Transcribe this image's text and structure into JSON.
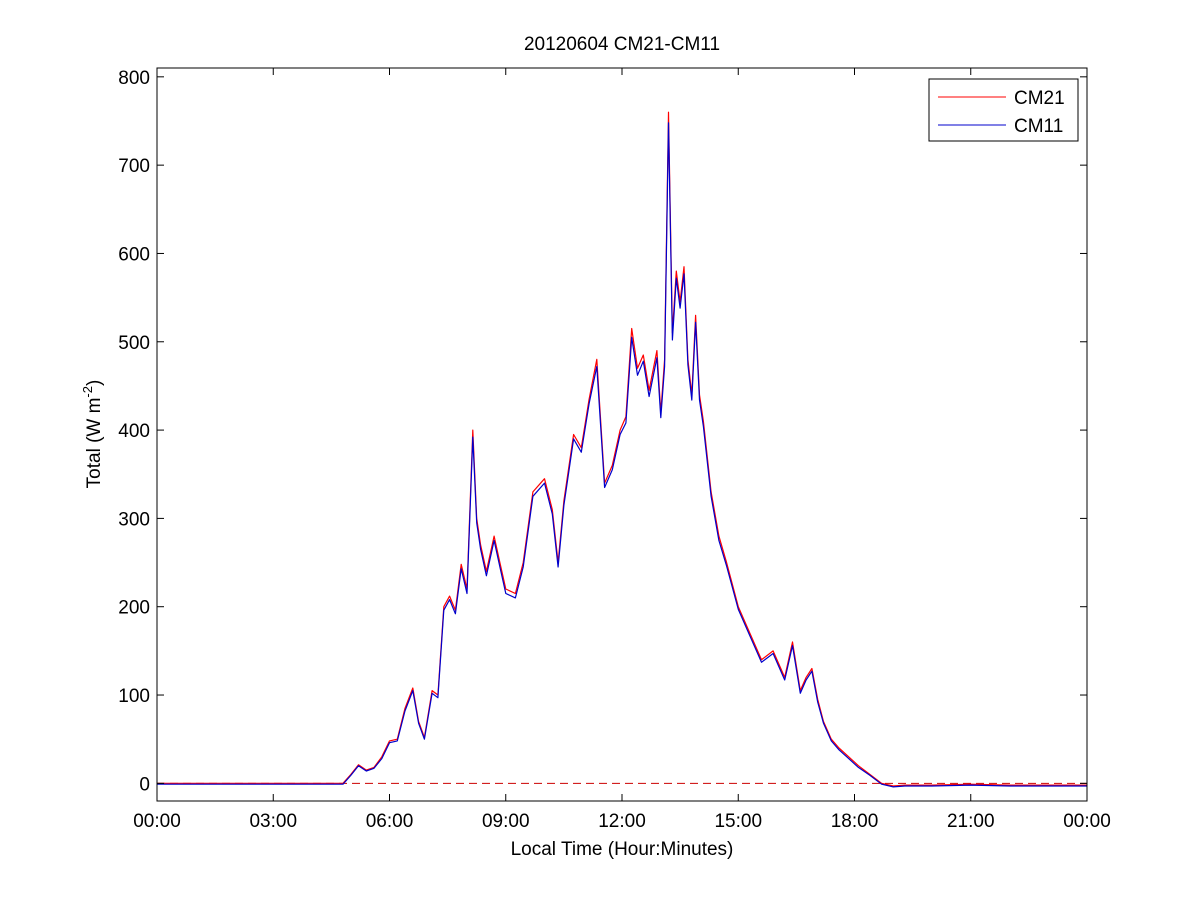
{
  "chart_data": {
    "type": "line",
    "title": "20120604 CM21-CM11",
    "xlabel": "Local Time (Hour:Minutes)",
    "ylabel": "Total (W m",
    "ylabel_sup": "-2",
    "ylabel_end": ")",
    "xlim": [
      0,
      24
    ],
    "ylim": [
      -20,
      810
    ],
    "x_ticks": [
      0,
      3,
      6,
      9,
      12,
      15,
      18,
      21,
      24
    ],
    "x_tick_labels": [
      "00:00",
      "03:00",
      "06:00",
      "09:00",
      "12:00",
      "15:00",
      "18:00",
      "21:00",
      "00:00"
    ],
    "y_ticks": [
      0,
      100,
      200,
      300,
      400,
      500,
      600,
      700,
      800
    ],
    "y_tick_labels": [
      "0",
      "100",
      "200",
      "300",
      "400",
      "500",
      "600",
      "700",
      "800"
    ],
    "grid": false,
    "legend_position": "top-right",
    "reference_line": {
      "y": 0,
      "style": "dashed",
      "color": "#cc0000"
    },
    "series": [
      {
        "name": "CM21",
        "color": "#ff0000",
        "x": [
          0,
          4.8,
          5.0,
          5.2,
          5.4,
          5.6,
          5.8,
          6.0,
          6.2,
          6.4,
          6.6,
          6.75,
          6.9,
          7.1,
          7.25,
          7.4,
          7.55,
          7.7,
          7.85,
          8.0,
          8.15,
          8.25,
          8.35,
          8.5,
          8.7,
          8.85,
          9.0,
          9.25,
          9.45,
          9.7,
          10.0,
          10.2,
          10.35,
          10.5,
          10.75,
          10.95,
          11.15,
          11.35,
          11.55,
          11.75,
          11.95,
          12.1,
          12.25,
          12.4,
          12.55,
          12.7,
          12.9,
          13.0,
          13.1,
          13.2,
          13.3,
          13.4,
          13.5,
          13.6,
          13.7,
          13.8,
          13.9,
          14.0,
          14.1,
          14.3,
          14.5,
          14.7,
          15.0,
          15.3,
          15.6,
          15.9,
          16.2,
          16.4,
          16.6,
          16.75,
          16.9,
          17.05,
          17.2,
          17.4,
          17.6,
          17.85,
          18.1,
          18.4,
          18.7,
          19.0,
          19.3,
          20.0,
          21.0,
          22.0,
          24.0
        ],
        "y": [
          0,
          0,
          10,
          21,
          15,
          18,
          30,
          48,
          50,
          85,
          108,
          70,
          52,
          105,
          100,
          200,
          212,
          196,
          248,
          220,
          400,
          300,
          270,
          240,
          280,
          250,
          220,
          215,
          250,
          330,
          345,
          310,
          250,
          320,
          395,
          380,
          435,
          480,
          340,
          360,
          400,
          415,
          515,
          470,
          485,
          445,
          490,
          420,
          480,
          760,
          510,
          580,
          545,
          585,
          480,
          440,
          530,
          440,
          410,
          330,
          280,
          250,
          200,
          170,
          140,
          150,
          120,
          160,
          105,
          120,
          130,
          95,
          70,
          50,
          40,
          30,
          20,
          10,
          0,
          -3,
          -2,
          -2,
          -1,
          -2,
          -2
        ]
      },
      {
        "name": "CM11",
        "color": "#0000cc",
        "x": [
          0,
          4.8,
          5.0,
          5.2,
          5.4,
          5.6,
          5.8,
          6.0,
          6.2,
          6.4,
          6.6,
          6.75,
          6.9,
          7.1,
          7.25,
          7.4,
          7.55,
          7.7,
          7.85,
          8.0,
          8.15,
          8.25,
          8.35,
          8.5,
          8.7,
          8.85,
          9.0,
          9.25,
          9.45,
          9.7,
          10.0,
          10.2,
          10.35,
          10.5,
          10.75,
          10.95,
          11.15,
          11.35,
          11.55,
          11.75,
          11.95,
          12.1,
          12.25,
          12.4,
          12.55,
          12.7,
          12.9,
          13.0,
          13.1,
          13.2,
          13.3,
          13.4,
          13.5,
          13.6,
          13.7,
          13.8,
          13.9,
          14.0,
          14.1,
          14.3,
          14.5,
          14.7,
          15.0,
          15.3,
          15.6,
          15.9,
          16.2,
          16.4,
          16.6,
          16.75,
          16.9,
          17.05,
          17.2,
          17.4,
          17.6,
          17.85,
          18.1,
          18.4,
          18.7,
          19.0,
          19.3,
          20.0,
          21.0,
          22.0,
          24.0
        ],
        "y": [
          -1,
          -1,
          9,
          20,
          14,
          17,
          28,
          46,
          48,
          82,
          105,
          68,
          50,
          102,
          97,
          196,
          208,
          192,
          243,
          215,
          392,
          295,
          265,
          235,
          275,
          245,
          215,
          210,
          245,
          325,
          340,
          305,
          245,
          315,
          390,
          375,
          430,
          472,
          335,
          355,
          395,
          408,
          505,
          462,
          478,
          438,
          482,
          414,
          472,
          748,
          502,
          572,
          538,
          577,
          474,
          434,
          522,
          434,
          404,
          325,
          275,
          246,
          197,
          167,
          137,
          147,
          117,
          156,
          102,
          117,
          127,
          92,
          68,
          48,
          38,
          28,
          18,
          9,
          -1,
          -4,
          -3,
          -3,
          -2,
          -3,
          -3
        ]
      }
    ]
  }
}
